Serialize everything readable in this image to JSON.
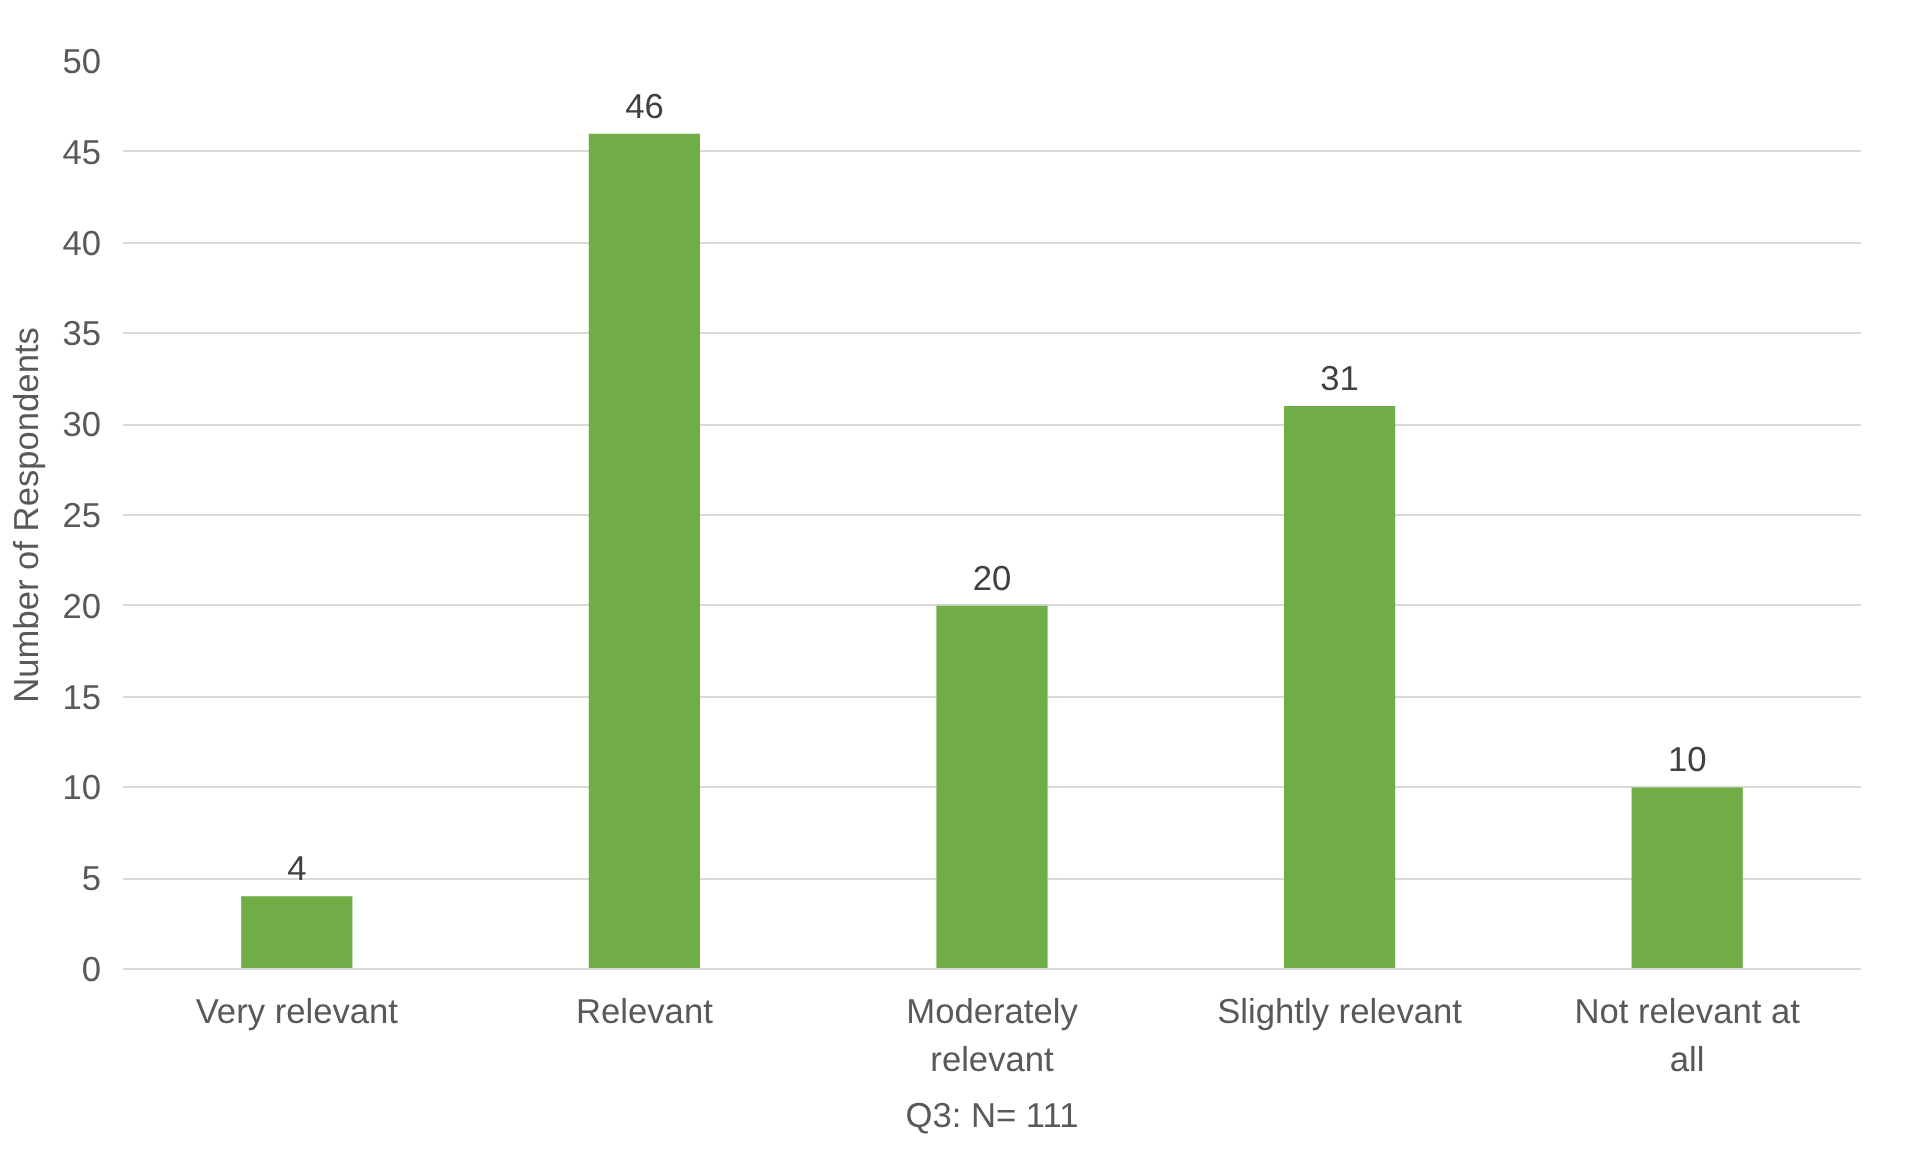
{
  "chart_data": {
    "type": "bar",
    "xlabel": "Q3: N= 111",
    "ylabel": "Number of Respondents",
    "categories": [
      "Very relevant",
      "Relevant",
      "Moderately relevant",
      "Slightly relevant",
      "Not relevant at all"
    ],
    "values": [
      4,
      46,
      20,
      31,
      10
    ],
    "color": "#70ad47",
    "ylim": [
      0,
      50
    ],
    "yticks": [
      0,
      5,
      10,
      15,
      20,
      25,
      30,
      35,
      40,
      45,
      50
    ],
    "grid": "y",
    "data_labels": true
  }
}
